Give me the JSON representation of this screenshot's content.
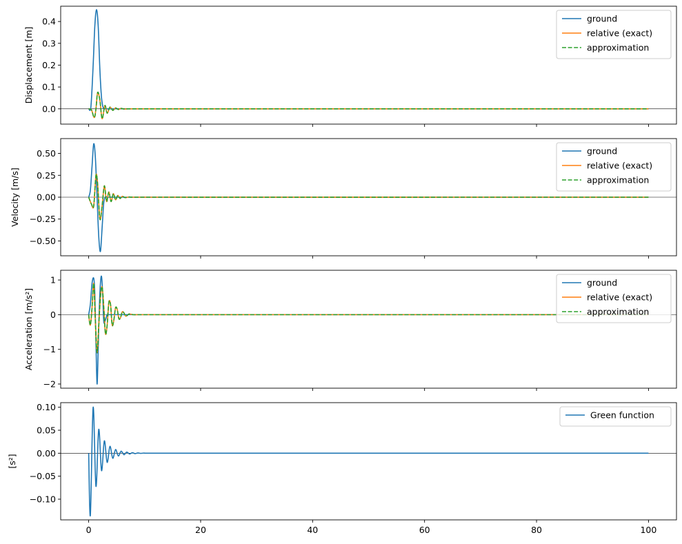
{
  "colors": {
    "ground": "#1f77b4",
    "relative": "#ff7f0e",
    "approximation": "#2ca02c",
    "green": "#1f77b4",
    "zero_line": "#000000"
  },
  "chart_data": [
    {
      "type": "line",
      "ylabel": "Displacement [m]",
      "xlim": [
        -5,
        105
      ],
      "ylim": [
        -0.07,
        0.47
      ],
      "yticks": [
        0.0,
        0.1,
        0.2,
        0.3,
        0.4
      ],
      "ytick_labels": [
        "0.0",
        "0.1",
        "0.2",
        "0.3",
        "0.4"
      ],
      "show_x_tick_labels": false,
      "zero_line": true,
      "legend": "upper-right",
      "series": [
        {
          "name": "ground",
          "color": "#1f77b4",
          "style": "solid",
          "x": [
            0,
            0.4,
            0.8,
            1.1,
            1.4,
            1.7,
            2.0,
            2.3,
            2.6,
            3.0,
            3.5,
            4.0,
            5.0,
            100
          ],
          "y": [
            0.0,
            0.01,
            0.2,
            0.38,
            0.455,
            0.38,
            0.18,
            0.05,
            0.005,
            0.0,
            0.0,
            0.0,
            0.0,
            0.0
          ]
        },
        {
          "name": "relative (exact)",
          "color": "#ff7f0e",
          "style": "solid",
          "x": [
            0,
            0.5,
            1.0,
            1.3,
            1.6,
            2.0,
            2.4,
            2.9,
            3.3,
            3.8,
            4.3,
            4.8,
            5.3,
            5.8,
            6.3,
            7.0,
            8.0,
            100
          ],
          "y": [
            0.0,
            -0.005,
            -0.04,
            0.0,
            0.075,
            0.04,
            -0.045,
            0.015,
            -0.02,
            0.008,
            -0.007,
            0.004,
            -0.003,
            0.002,
            -0.001,
            0.0,
            0.0,
            0.0
          ]
        },
        {
          "name": "approximation",
          "color": "#2ca02c",
          "style": "dashed",
          "x": [
            0,
            0.5,
            1.0,
            1.3,
            1.6,
            2.0,
            2.4,
            2.9,
            3.3,
            3.8,
            4.3,
            4.8,
            5.3,
            5.8,
            6.3,
            7.0,
            8.0,
            100
          ],
          "y": [
            0.0,
            -0.005,
            -0.04,
            0.0,
            0.075,
            0.04,
            -0.045,
            0.015,
            -0.02,
            0.008,
            -0.007,
            0.004,
            -0.003,
            0.002,
            -0.001,
            0.0,
            0.0,
            0.0
          ]
        }
      ]
    },
    {
      "type": "line",
      "ylabel": "Velocity [m/s]",
      "xlim": [
        -5,
        105
      ],
      "ylim": [
        -0.67,
        0.67
      ],
      "yticks": [
        -0.5,
        -0.25,
        0.0,
        0.25,
        0.5
      ],
      "ytick_labels": [
        "−0.50",
        "−0.25",
        "0.00",
        "0.25",
        "0.50"
      ],
      "show_x_tick_labels": false,
      "zero_line": true,
      "legend": "upper-right",
      "series": [
        {
          "name": "ground",
          "color": "#1f77b4",
          "style": "solid",
          "x": [
            0,
            0.3,
            0.6,
            0.9,
            1.2,
            1.5,
            1.8,
            2.1,
            2.4,
            2.7,
            3.0,
            3.4,
            4.0,
            100
          ],
          "y": [
            0.0,
            0.08,
            0.35,
            0.61,
            0.45,
            0.0,
            -0.45,
            -0.62,
            -0.35,
            -0.06,
            0.0,
            0.0,
            0.0,
            0.0
          ]
        },
        {
          "name": "relative (exact)",
          "color": "#ff7f0e",
          "style": "solid",
          "x": [
            0,
            0.5,
            0.9,
            1.3,
            1.6,
            2.0,
            2.4,
            2.8,
            3.2,
            3.6,
            4.0,
            4.4,
            4.8,
            5.2,
            5.6,
            6.0,
            6.5,
            7.2,
            8.0,
            100
          ],
          "y": [
            0.0,
            -0.08,
            -0.1,
            0.25,
            0.15,
            -0.25,
            -0.1,
            0.13,
            -0.05,
            0.06,
            -0.05,
            0.04,
            -0.03,
            0.02,
            -0.015,
            0.01,
            -0.005,
            0.002,
            0.0,
            0.0
          ]
        },
        {
          "name": "approximation",
          "color": "#2ca02c",
          "style": "dashed",
          "x": [
            0,
            0.5,
            0.9,
            1.3,
            1.6,
            2.0,
            2.4,
            2.8,
            3.2,
            3.6,
            4.0,
            4.4,
            4.8,
            5.2,
            5.6,
            6.0,
            6.5,
            7.2,
            8.0,
            100
          ],
          "y": [
            0.0,
            -0.08,
            -0.1,
            0.25,
            0.15,
            -0.25,
            -0.1,
            0.13,
            -0.05,
            0.06,
            -0.05,
            0.04,
            -0.03,
            0.02,
            -0.015,
            0.01,
            -0.005,
            0.002,
            0.0,
            0.0
          ]
        }
      ]
    },
    {
      "type": "line",
      "ylabel": "Acceleration [m/s²]",
      "xlim": [
        -5,
        105
      ],
      "ylim": [
        -2.12,
        1.28
      ],
      "yticks": [
        -2,
        -1,
        0,
        1
      ],
      "ytick_labels": [
        "−2",
        "−1",
        "0",
        "1"
      ],
      "show_x_tick_labels": false,
      "zero_line": true,
      "legend": "upper-right",
      "series": [
        {
          "name": "ground",
          "color": "#1f77b4",
          "style": "solid",
          "x": [
            0,
            0.3,
            0.6,
            0.9,
            1.1,
            1.3,
            1.5,
            1.7,
            1.9,
            2.1,
            2.3,
            2.5,
            2.7,
            3.0,
            3.3,
            3.6,
            100
          ],
          "y": [
            0.0,
            0.3,
            0.9,
            1.05,
            0.6,
            -0.8,
            -2.0,
            -1.0,
            0.2,
            0.9,
            1.1,
            0.6,
            -0.2,
            -0.15,
            0.0,
            0.0,
            0.0
          ]
        },
        {
          "name": "relative (exact)",
          "color": "#ff7f0e",
          "style": "solid",
          "x": [
            0,
            0.3,
            0.6,
            0.9,
            1.2,
            1.5,
            1.8,
            2.1,
            2.4,
            2.7,
            3.0,
            3.3,
            3.6,
            3.9,
            4.2,
            4.5,
            4.8,
            5.1,
            5.4,
            5.7,
            6.0,
            6.3,
            6.6,
            6.9,
            7.2,
            7.6,
            8.0,
            9.0,
            100
          ],
          "y": [
            0.0,
            -0.3,
            0.2,
            0.9,
            -0.2,
            -1.1,
            -0.3,
            0.5,
            0.8,
            0.2,
            -0.55,
            -0.3,
            0.35,
            0.3,
            -0.3,
            -0.15,
            0.2,
            0.15,
            -0.12,
            -0.08,
            0.08,
            0.05,
            -0.04,
            -0.02,
            0.02,
            0.01,
            0.0,
            0.0,
            0.0
          ]
        },
        {
          "name": "approximation",
          "color": "#2ca02c",
          "style": "dashed",
          "x": [
            0,
            0.3,
            0.6,
            0.9,
            1.2,
            1.5,
            1.8,
            2.1,
            2.4,
            2.7,
            3.0,
            3.3,
            3.6,
            3.9,
            4.2,
            4.5,
            4.8,
            5.1,
            5.4,
            5.7,
            6.0,
            6.3,
            6.6,
            6.9,
            7.2,
            7.6,
            8.0,
            9.0,
            100
          ],
          "y": [
            0.0,
            -0.3,
            0.2,
            0.9,
            -0.2,
            -1.1,
            -0.3,
            0.5,
            0.8,
            0.2,
            -0.55,
            -0.3,
            0.35,
            0.3,
            -0.3,
            -0.15,
            0.2,
            0.15,
            -0.12,
            -0.08,
            0.08,
            0.05,
            -0.04,
            -0.02,
            0.02,
            0.01,
            0.0,
            0.0,
            0.0
          ]
        }
      ]
    },
    {
      "type": "line",
      "ylabel": "[s²]",
      "xlim": [
        -5,
        105
      ],
      "ylim": [
        -0.145,
        0.11
      ],
      "yticks": [
        -0.1,
        -0.05,
        0.0,
        0.05,
        0.1
      ],
      "ytick_labels": [
        "−0.10",
        "−0.05",
        "0.00",
        "0.05",
        "0.10"
      ],
      "xticks": [
        0,
        20,
        40,
        60,
        80,
        100
      ],
      "xtick_labels": [
        "0",
        "20",
        "40",
        "60",
        "80",
        "100"
      ],
      "show_x_tick_labels": true,
      "zero_line": true,
      "legend": "upper-right",
      "series": [
        {
          "name": "Green function",
          "color": "#1f77b4",
          "style": "solid",
          "x": [
            0,
            0.3,
            0.8,
            1.3,
            1.8,
            2.3,
            2.8,
            3.3,
            3.8,
            4.3,
            4.8,
            5.3,
            5.8,
            6.3,
            6.8,
            7.3,
            7.8,
            8.3,
            8.8,
            9.3,
            9.8,
            10.5,
            100
          ],
          "y": [
            0.0,
            -0.135,
            0.1,
            -0.072,
            0.052,
            -0.038,
            0.027,
            -0.02,
            0.015,
            -0.011,
            0.008,
            -0.006,
            0.0045,
            -0.0033,
            0.0024,
            -0.0017,
            0.0012,
            -0.0009,
            0.0006,
            -0.0004,
            0.0003,
            0.0,
            0.0
          ]
        }
      ]
    }
  ]
}
